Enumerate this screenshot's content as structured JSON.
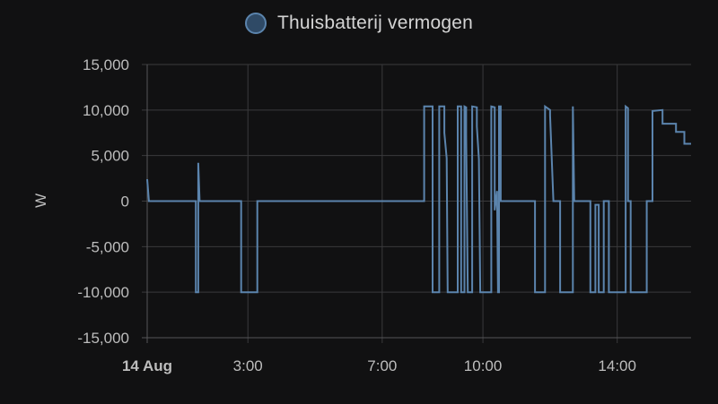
{
  "legend": {
    "label": "Thuisbatterij vermogen",
    "color": "#5b84ad"
  },
  "chart_data": {
    "type": "line",
    "title": "",
    "ylabel": "W",
    "xlabel": "",
    "ylim": [
      -15000,
      15000
    ],
    "yticks": [
      15000,
      10000,
      5000,
      0,
      -5000,
      -10000,
      -15000
    ],
    "ytick_labels": [
      "15,000",
      "10,000",
      "5,000",
      "0",
      "-5,000",
      "-10,000",
      "-15,000"
    ],
    "xlim_hours": [
      0,
      16.2
    ],
    "xticks": [
      {
        "hour": 0,
        "label": "14 Aug",
        "bold": true
      },
      {
        "hour": 3,
        "label": "3:00",
        "bold": false
      },
      {
        "hour": 7,
        "label": "7:00",
        "bold": false
      },
      {
        "hour": 10,
        "label": "10:00",
        "bold": false
      },
      {
        "hour": 14,
        "label": "14:00",
        "bold": false
      }
    ],
    "grid": true,
    "legend_position": "top-center",
    "series": [
      {
        "name": "Thuisbatterij vermogen",
        "color": "#5b84ad",
        "points": [
          [
            0.0,
            2400
          ],
          [
            0.05,
            0
          ],
          [
            1.45,
            0
          ],
          [
            1.45,
            -10000
          ],
          [
            1.52,
            -10000
          ],
          [
            1.52,
            4200
          ],
          [
            1.56,
            0
          ],
          [
            2.8,
            0
          ],
          [
            2.8,
            -10000
          ],
          [
            3.28,
            -10000
          ],
          [
            3.28,
            0
          ],
          [
            8.25,
            0
          ],
          [
            8.25,
            10400
          ],
          [
            8.5,
            10400
          ],
          [
            8.5,
            -10000
          ],
          [
            8.7,
            -10000
          ],
          [
            8.7,
            10400
          ],
          [
            8.85,
            10400
          ],
          [
            8.85,
            7500
          ],
          [
            8.92,
            4700
          ],
          [
            8.95,
            -10000
          ],
          [
            9.25,
            -10000
          ],
          [
            9.25,
            10400
          ],
          [
            9.35,
            10400
          ],
          [
            9.35,
            -10000
          ],
          [
            9.45,
            -10000
          ],
          [
            9.45,
            10400
          ],
          [
            9.5,
            10300
          ],
          [
            9.5,
            7200
          ],
          [
            9.55,
            -10000
          ],
          [
            9.68,
            -10000
          ],
          [
            9.68,
            10400
          ],
          [
            9.82,
            10300
          ],
          [
            9.82,
            8200
          ],
          [
            9.88,
            4600
          ],
          [
            9.92,
            -10000
          ],
          [
            10.25,
            -10000
          ],
          [
            10.25,
            10400
          ],
          [
            10.35,
            10300
          ],
          [
            10.35,
            -1000
          ],
          [
            10.42,
            1100
          ],
          [
            10.45,
            -10000
          ],
          [
            10.48,
            -10000
          ],
          [
            10.48,
            10400
          ],
          [
            10.53,
            10400
          ],
          [
            10.53,
            0
          ],
          [
            11.55,
            0
          ],
          [
            11.55,
            -10000
          ],
          [
            11.85,
            -10000
          ],
          [
            11.85,
            10400
          ],
          [
            12.0,
            10000
          ],
          [
            12.0,
            9400
          ],
          [
            12.1,
            0
          ],
          [
            12.3,
            0
          ],
          [
            12.3,
            -10000
          ],
          [
            12.68,
            -10000
          ],
          [
            12.68,
            10400
          ],
          [
            12.72,
            0
          ],
          [
            13.2,
            0
          ],
          [
            13.2,
            -10000
          ],
          [
            13.35,
            -10000
          ],
          [
            13.35,
            -400
          ],
          [
            13.45,
            -400
          ],
          [
            13.45,
            -10000
          ],
          [
            13.6,
            -10000
          ],
          [
            13.6,
            0
          ],
          [
            13.75,
            0
          ],
          [
            13.75,
            -10000
          ],
          [
            14.25,
            -10000
          ],
          [
            14.25,
            10400
          ],
          [
            14.32,
            10200
          ],
          [
            14.32,
            0
          ],
          [
            14.4,
            0
          ],
          [
            14.4,
            -10000
          ],
          [
            14.88,
            -10000
          ],
          [
            14.88,
            0
          ],
          [
            15.05,
            0
          ],
          [
            15.05,
            9900
          ],
          [
            15.35,
            10000
          ],
          [
            15.35,
            8500
          ],
          [
            15.75,
            8500
          ],
          [
            15.75,
            7600
          ],
          [
            16.0,
            7600
          ],
          [
            16.0,
            6300
          ],
          [
            16.2,
            6300
          ]
        ]
      }
    ]
  }
}
